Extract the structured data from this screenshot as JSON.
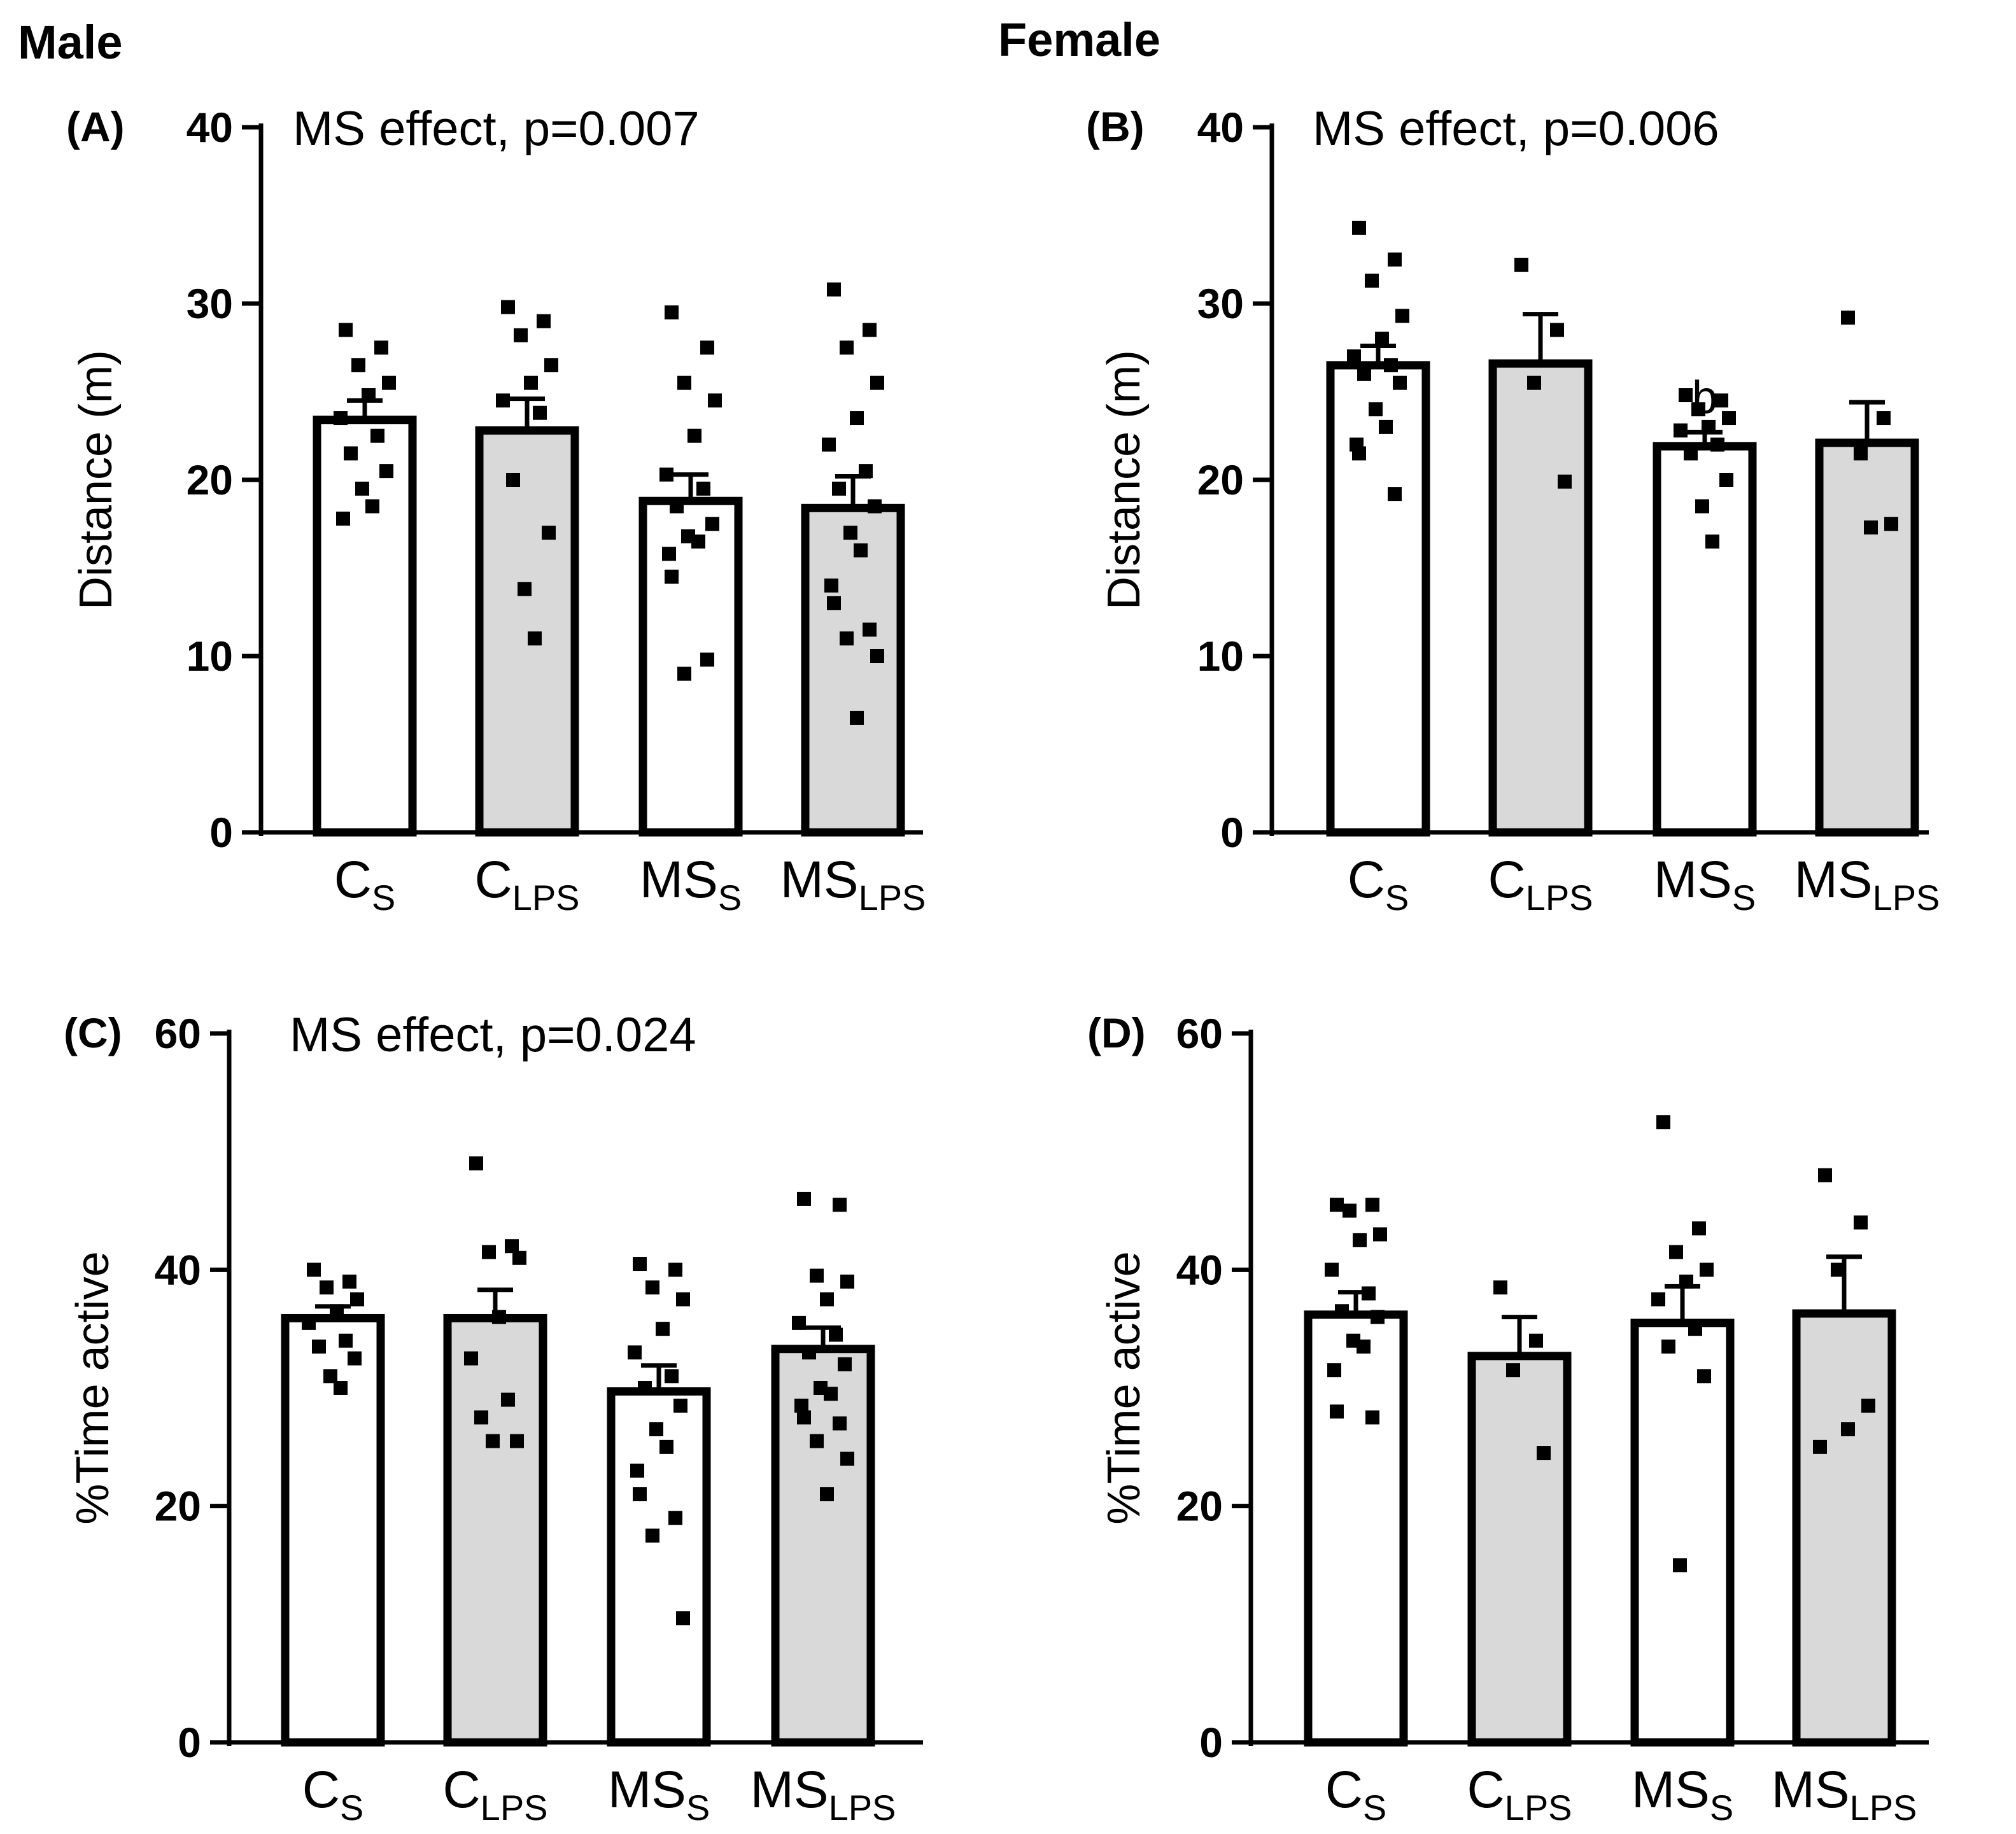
{
  "figure": {
    "headers": {
      "male": "Male",
      "female": "Female"
    },
    "colors": {
      "open_bar": "#ffffff",
      "filled_bar": "#d9d9d9",
      "ink": "#000000"
    }
  },
  "chart_data": [
    {
      "panel": "(A)",
      "sex": "Male",
      "type": "bar",
      "annotation": "MS effect, p=0.007",
      "ylabel": "Distance (m)",
      "ylim": [
        0,
        40
      ],
      "yticks": [
        0,
        10,
        20,
        30,
        40
      ],
      "categories": [
        {
          "main": "C",
          "sub": "S",
          "fill": "open"
        },
        {
          "main": "C",
          "sub": "LPS",
          "fill": "filled"
        },
        {
          "main": "MS",
          "sub": "S",
          "fill": "open"
        },
        {
          "main": "MS",
          "sub": "LPS",
          "fill": "filled"
        }
      ],
      "means": [
        23.4,
        22.8,
        18.8,
        18.4
      ],
      "sem": [
        1.1,
        1.8,
        1.5,
        1.8
      ],
      "sig_letters": [
        "",
        "",
        "",
        ""
      ],
      "points": [
        [
          28.5,
          27.5,
          26.5,
          25.5,
          24.8,
          23.5,
          22.5,
          21.5,
          20.5,
          19.5,
          18.5,
          17.8
        ],
        [
          29.8,
          29.0,
          28.2,
          26.5,
          25.5,
          24.5,
          23.8,
          20.0,
          17.0,
          13.8,
          11.0
        ],
        [
          29.5,
          27.5,
          25.5,
          24.5,
          22.5,
          20.3,
          19.5,
          18.5,
          17.5,
          16.8,
          16.5,
          15.8,
          14.5,
          9.8,
          9.0
        ],
        [
          30.8,
          28.5,
          27.5,
          25.5,
          23.5,
          22.0,
          20.5,
          19.5,
          18.5,
          17.0,
          16.0,
          14.0,
          13.0,
          11.5,
          11.0,
          10.0,
          6.5
        ]
      ]
    },
    {
      "panel": "(B)",
      "sex": "Female",
      "type": "bar",
      "annotation": "MS effect, p=0.006",
      "ylabel": "Distance (m)",
      "ylim": [
        0,
        40
      ],
      "yticks": [
        0,
        10,
        20,
        30,
        40
      ],
      "categories": [
        {
          "main": "C",
          "sub": "S",
          "fill": "open"
        },
        {
          "main": "C",
          "sub": "LPS",
          "fill": "filled"
        },
        {
          "main": "MS",
          "sub": "S",
          "fill": "open"
        },
        {
          "main": "MS",
          "sub": "LPS",
          "fill": "filled"
        }
      ],
      "means": [
        26.5,
        26.6,
        21.9,
        22.1
      ],
      "sem": [
        1.1,
        2.8,
        0.8,
        2.3
      ],
      "sig_letters": [
        "",
        "",
        "b",
        ""
      ],
      "points": [
        [
          34.3,
          32.5,
          31.3,
          29.3,
          28.0,
          27.0,
          26.5,
          26.0,
          25.5,
          24.0,
          23.0,
          22.0,
          21.5,
          19.2
        ],
        [
          32.2,
          28.5,
          25.5,
          19.9
        ],
        [
          24.8,
          24.5,
          24.0,
          23.5,
          23.0,
          22.8,
          22.0,
          21.5,
          20.0,
          18.5,
          16.5
        ],
        [
          29.2,
          23.5,
          21.5,
          17.5,
          17.3
        ]
      ]
    },
    {
      "panel": "(C)",
      "sex": "Male",
      "type": "bar",
      "annotation": "MS effect, p=0.024",
      "ylabel": "%Time active",
      "ylim": [
        0,
        60
      ],
      "yticks": [
        0,
        20,
        40,
        60
      ],
      "categories": [
        {
          "main": "C",
          "sub": "S",
          "fill": "open"
        },
        {
          "main": "C",
          "sub": "LPS",
          "fill": "filled"
        },
        {
          "main": "MS",
          "sub": "S",
          "fill": "open"
        },
        {
          "main": "MS",
          "sub": "LPS",
          "fill": "filled"
        }
      ],
      "means": [
        35.9,
        35.9,
        29.7,
        33.3
      ],
      "sem": [
        1.0,
        2.4,
        2.2,
        1.8
      ],
      "sig_letters": [
        "",
        "",
        "",
        ""
      ],
      "points": [
        [
          40.0,
          39.0,
          38.5,
          37.5,
          36.5,
          35.5,
          34.0,
          33.5,
          32.5,
          31.0,
          30.0
        ],
        [
          49.0,
          42.0,
          41.5,
          41.0,
          36.0,
          32.5,
          29.0,
          27.5,
          25.5,
          25.5
        ],
        [
          40.5,
          40.0,
          38.5,
          37.5,
          35.0,
          33.0,
          31.0,
          30.0,
          28.5,
          26.5,
          25.0,
          23.0,
          21.0,
          19.0,
          17.5,
          10.5
        ],
        [
          46.0,
          45.5,
          39.5,
          39.0,
          37.5,
          35.5,
          34.5,
          33.0,
          32.0,
          30.0,
          29.5,
          28.5,
          27.5,
          27.0,
          25.5,
          24.0,
          21.0
        ]
      ]
    },
    {
      "panel": "(D)",
      "sex": "Female",
      "type": "bar",
      "annotation": "",
      "ylabel": "%Time active",
      "ylim": [
        0,
        60
      ],
      "yticks": [
        0,
        20,
        40,
        60
      ],
      "categories": [
        {
          "main": "C",
          "sub": "S",
          "fill": "open"
        },
        {
          "main": "C",
          "sub": "LPS",
          "fill": "filled"
        },
        {
          "main": "MS",
          "sub": "S",
          "fill": "open"
        },
        {
          "main": "MS",
          "sub": "LPS",
          "fill": "filled"
        }
      ],
      "means": [
        36.2,
        32.7,
        35.5,
        36.3
      ],
      "sem": [
        1.9,
        3.3,
        3.1,
        4.8
      ],
      "sig_letters": [
        "",
        "",
        "",
        ""
      ],
      "points": [
        [
          45.5,
          45.5,
          45.0,
          43.0,
          42.5,
          40.0,
          38.0,
          36.5,
          36.0,
          34.0,
          33.5,
          31.5,
          28.0,
          27.5
        ],
        [
          38.5,
          34.0,
          31.5,
          24.5
        ],
        [
          52.5,
          43.5,
          41.5,
          40.0,
          39.0,
          37.5,
          35.0,
          33.5,
          31.0,
          15.0
        ],
        [
          48.0,
          44.0,
          40.0,
          28.5,
          26.5,
          25.0
        ]
      ]
    }
  ]
}
